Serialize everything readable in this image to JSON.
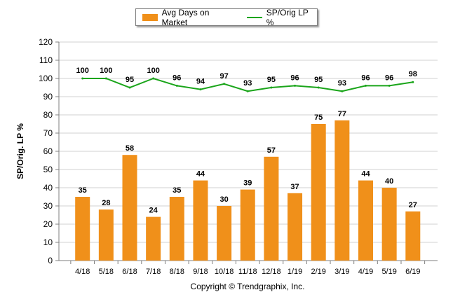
{
  "legend": {
    "bar_label": "Avg Days on Market",
    "line_label": "SP/Orig LP %"
  },
  "footer": {
    "copyright": "Copyright © Trendgraphix, Inc."
  },
  "colors": {
    "bar": "#f0901a",
    "line": "#1aa51a",
    "grid": "#d0d0d0",
    "axis": "#7f7f7f"
  },
  "chart_data": {
    "type": "bar",
    "categories": [
      "4/18",
      "5/18",
      "6/18",
      "7/18",
      "8/18",
      "9/18",
      "10/18",
      "11/18",
      "12/18",
      "1/19",
      "2/19",
      "3/19",
      "4/19",
      "5/19",
      "6/19"
    ],
    "series": [
      {
        "name": "Avg Days on Market",
        "type": "bar",
        "values": [
          35,
          28,
          58,
          24,
          35,
          44,
          30,
          39,
          57,
          37,
          75,
          77,
          44,
          40,
          27
        ]
      },
      {
        "name": "SP/Orig LP %",
        "type": "line",
        "values": [
          100,
          100,
          95,
          100,
          96,
          94,
          97,
          93,
          95,
          96,
          95,
          93,
          96,
          96,
          98
        ]
      }
    ],
    "ylabel": "SP/Orig. LP %",
    "ylim": [
      0,
      120
    ],
    "yticks": [
      0,
      10,
      20,
      30,
      40,
      50,
      60,
      70,
      80,
      90,
      100,
      110,
      120
    ],
    "grid": true,
    "legend_position": "top-center"
  }
}
